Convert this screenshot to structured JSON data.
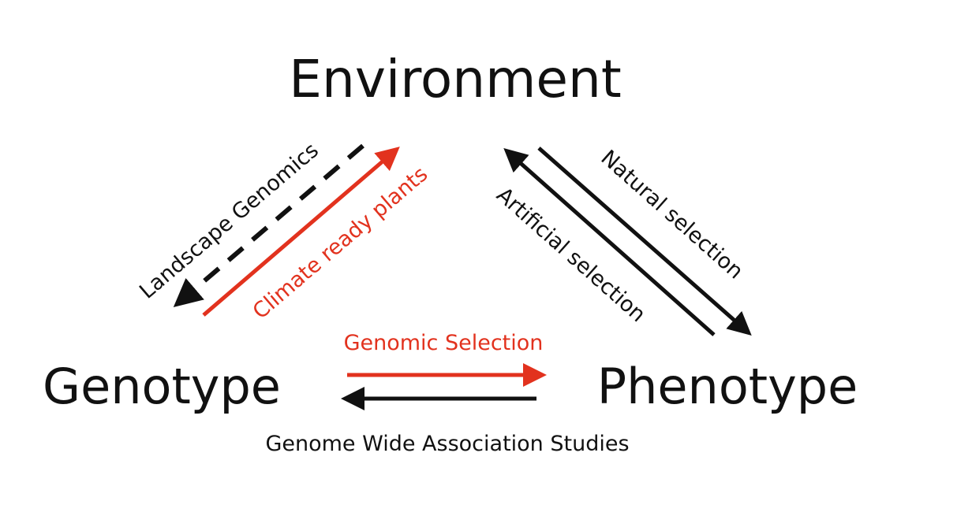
{
  "nodes": {
    "environment": "Environment",
    "genotype": "Genotype",
    "phenotype": "Phenotype"
  },
  "edges": {
    "landscape_genomics": "Landscape Genomics",
    "climate_ready_plants": "Climate ready plants",
    "natural_selection": "Natural selection",
    "artificial_selection": "Artificial selection",
    "genomic_selection": "Genomic Selection",
    "gwas": "Genome Wide Association Studies"
  },
  "colors": {
    "black": "#111111",
    "red": "#e2321e"
  }
}
